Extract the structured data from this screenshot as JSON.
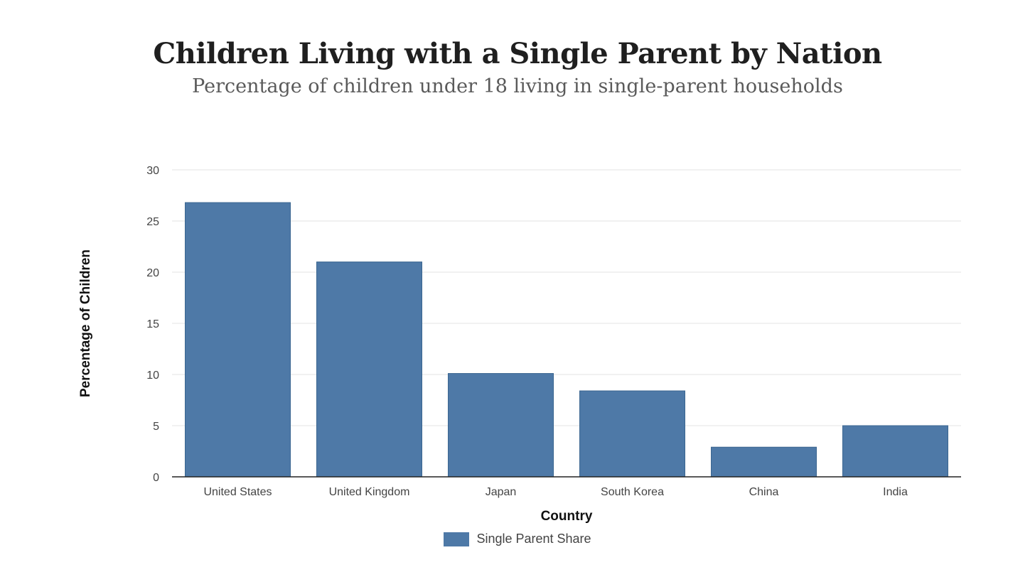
{
  "chart_data": {
    "type": "bar",
    "title": "Children Living with a Single Parent by Nation",
    "subtitle": "Percentage of children under 18 living in single-parent households",
    "xlabel": "Country",
    "ylabel": "Percentage of Children",
    "categories": [
      "United States",
      "United Kingdom",
      "Japan",
      "South Korea",
      "China",
      "India"
    ],
    "series": [
      {
        "name": "Single Parent Share",
        "values": [
          26.8,
          21.0,
          10.1,
          8.4,
          2.9,
          5.0
        ],
        "color": "#4e79a7"
      }
    ],
    "ylim": [
      0,
      30
    ],
    "yticks": [
      0,
      5,
      10,
      15,
      20,
      25,
      30
    ],
    "grid": true,
    "legend_position": "bottom-center"
  }
}
